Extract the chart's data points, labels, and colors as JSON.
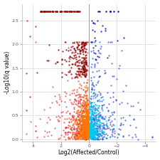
{
  "title": "",
  "xlabel": "Log2(Affected/Control)",
  "ylabel": "-Log10(q value)",
  "xlim": [
    4.8,
    -4.8
  ],
  "ylim": [
    -0.05,
    2.85
  ],
  "yticks": [
    0,
    0.5,
    1.0,
    1.5,
    2.0,
    2.5
  ],
  "xticks": [
    4,
    2,
    0,
    -2,
    -4
  ],
  "vline_x": 0,
  "background_color": "#ffffff",
  "grid_color": "#d0d0d0",
  "figsize": [
    2.25,
    2.25
  ],
  "dpi": 100,
  "y_cap": 2.7
}
